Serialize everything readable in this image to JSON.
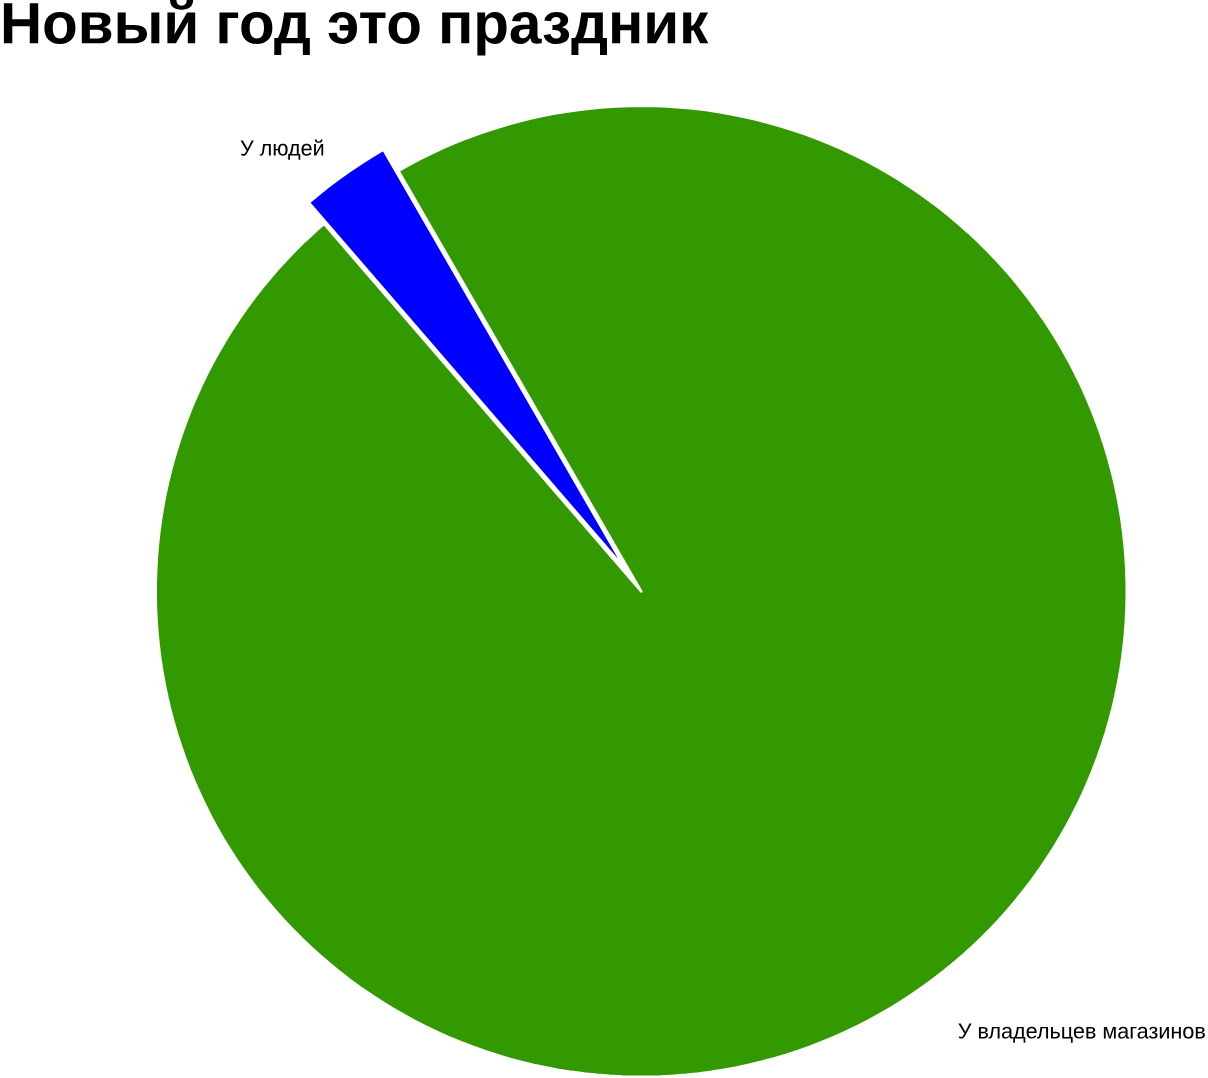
{
  "chart_data": {
    "type": "pie",
    "title": "Новый год это праздник",
    "categories": [
      "У людей",
      "У владельцев магазинов"
    ],
    "values": [
      3,
      97
    ],
    "colors": [
      "#0000ff",
      "#339900"
    ]
  }
}
